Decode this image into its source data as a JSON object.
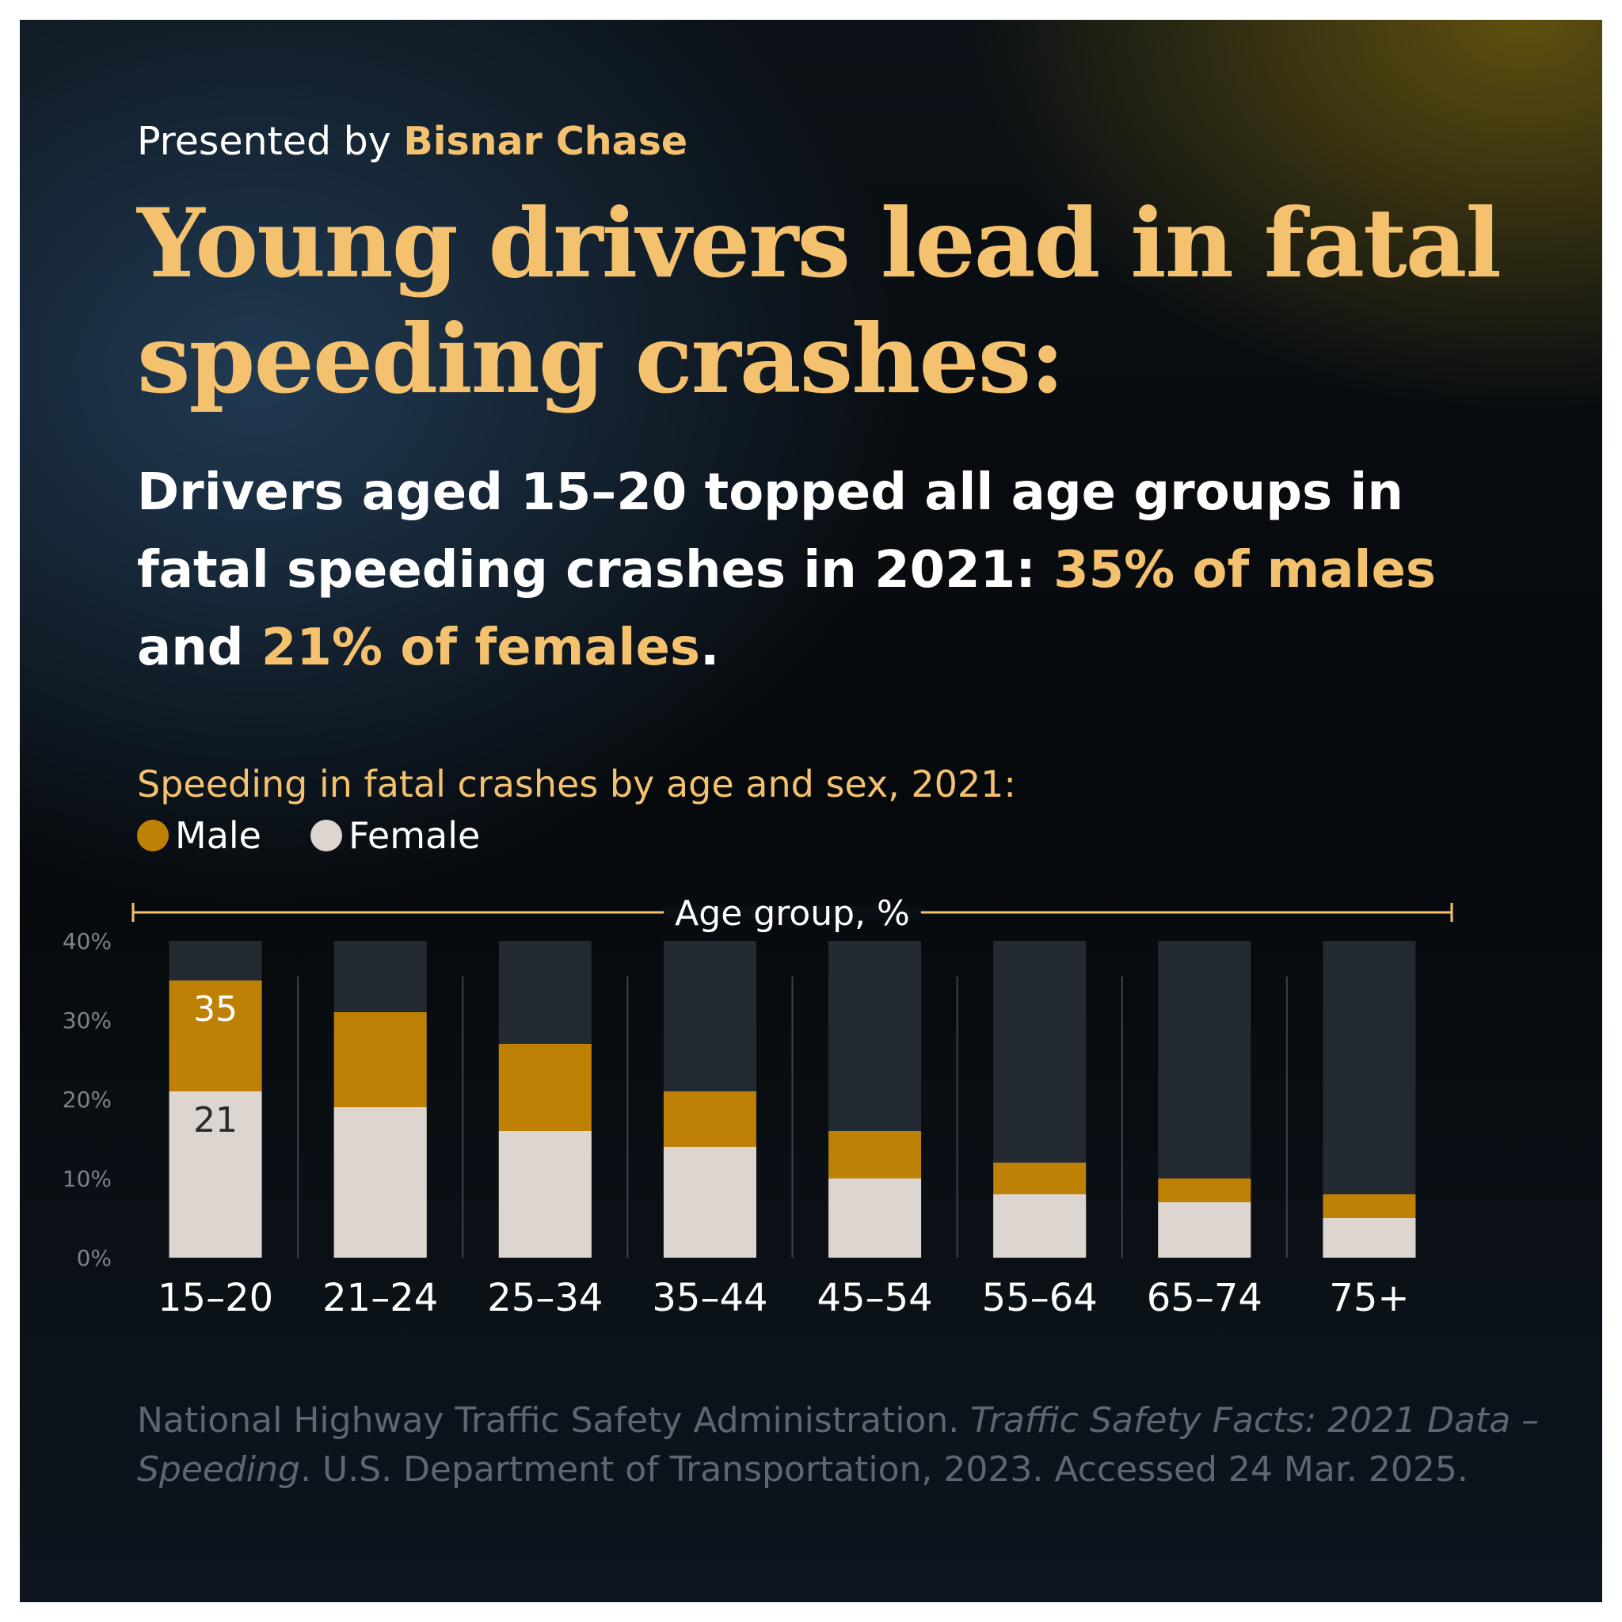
{
  "colors": {
    "male": "#be8105",
    "female": "#dcd5d0",
    "track": "#232a32",
    "accent": "#f4c16e",
    "divider": "#3a424b"
  },
  "header": {
    "presented_prefix": "Presented by",
    "presented_brand": "Bisnar Chase",
    "title": "Young drivers lead in fatal speeding crashes:"
  },
  "subtitle": {
    "part1": "Drivers aged 15–20 topped all age groups in fatal speeding crashes in 2021:",
    "highlight1": "35% of males",
    "part2": "and",
    "highlight2": "21% of females",
    "end": "."
  },
  "chart_data": {
    "type": "bar",
    "stacking": "overlay",
    "title": "Speeding in fatal crashes by age and sex, 2021:",
    "xlabel": "Age group, %",
    "ylabel": "",
    "ylim": [
      0,
      40
    ],
    "y_ticks": [
      "0%",
      "10%",
      "20%",
      "30%",
      "40%"
    ],
    "categories": [
      "15–20",
      "21–24",
      "25–34",
      "35–44",
      "45–54",
      "55–64",
      "65–74",
      "75+"
    ],
    "series": [
      {
        "name": "Male",
        "values": [
          35,
          31,
          27,
          21,
          16,
          12,
          10,
          8
        ]
      },
      {
        "name": "Female",
        "values": [
          21,
          19,
          16,
          14,
          10,
          8,
          7,
          5
        ]
      }
    ],
    "data_labels": [
      {
        "series": "Male",
        "category": "15–20",
        "text": "35"
      },
      {
        "series": "Female",
        "category": "15–20",
        "text": "21"
      }
    ],
    "legend": "top-left",
    "grid": false
  },
  "source": {
    "part1": "National Highway Traffic Safety Administration.",
    "italic": "Traffic Safety Facts: 2021 Data – Speeding",
    "part2": ". U.S. Department of Transportation, 2023. Accessed 24 Mar. 2025."
  }
}
